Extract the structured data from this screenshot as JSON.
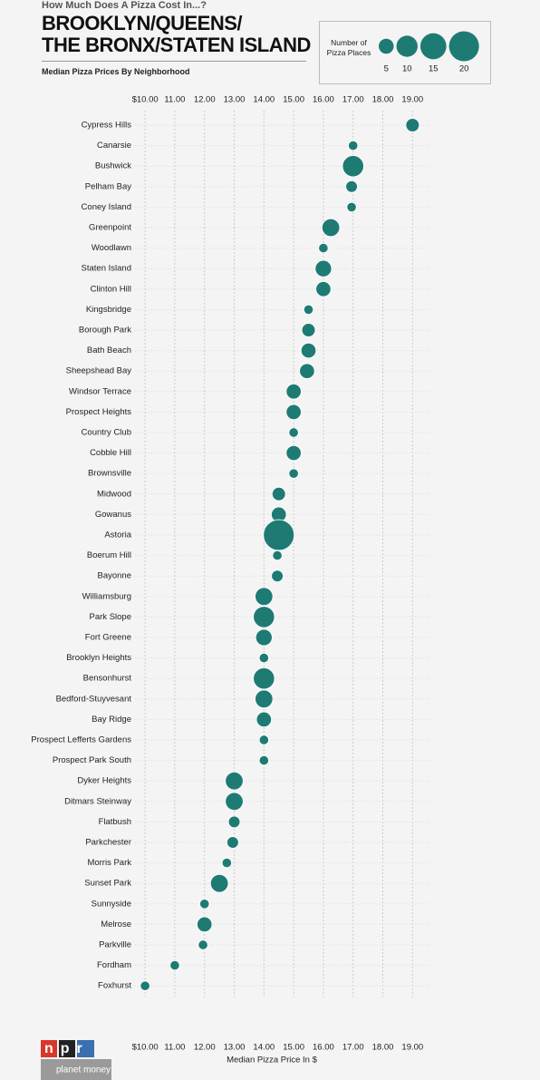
{
  "kicker": "How Much Does A Pizza Cost In...?",
  "title": "BROOKLYN/QUEENS/\nTHE BRONX/STATEN ISLAND",
  "subtitle": "Median Pizza Prices By Neighborhood",
  "logos": {
    "npr": "npr",
    "planet_money": "planet money"
  },
  "chart_data": {
    "type": "dot",
    "color": "#1e7b74",
    "x_label": "Median Pizza Price In $",
    "size_legend": {
      "title": "Number of\nPizza Places",
      "values": [
        5,
        10,
        15,
        20
      ]
    },
    "categories": [
      "Cypress Hills",
      "Canarsie",
      "Bushwick",
      "Pelham Bay",
      "Coney Island",
      "Greenpoint",
      "Woodlawn",
      "Staten Island",
      "Clinton Hill",
      "Kingsbridge",
      "Borough Park",
      "Bath Beach",
      "Sheepshead Bay",
      "Windsor Terrace",
      "Prospect Heights",
      "Country Club",
      "Cobble Hill",
      "Brownsville",
      "Midwood",
      "Gowanus",
      "Astoria",
      "Boerum Hill",
      "Bayonne",
      "Williamsburg",
      "Park Slope",
      "Fort Greene",
      "Brooklyn Heights",
      "Bensonhurst",
      "Bedford-Stuyvesant",
      "Bay Ridge",
      "Prospect Lefferts Gardens",
      "Prospect Park South",
      "Dyker Heights",
      "Ditmars Steinway",
      "Flatbush",
      "Parkchester",
      "Morris Park",
      "Sunset Park",
      "Sunnyside",
      "Melrose",
      "Parkville",
      "Fordham",
      "Foxhurst"
    ],
    "values": [
      19.0,
      17.0,
      17.0,
      16.95,
      16.95,
      16.25,
      16.0,
      16.0,
      16.0,
      15.5,
      15.5,
      15.5,
      15.45,
      15.0,
      15.0,
      15.0,
      15.0,
      15.0,
      14.5,
      14.5,
      14.5,
      14.45,
      14.45,
      14.0,
      14.0,
      14.0,
      14.0,
      14.0,
      14.0,
      14.0,
      14.0,
      14.0,
      13.0,
      13.0,
      13.0,
      12.95,
      12.75,
      12.5,
      12.0,
      12.0,
      11.95,
      11.0,
      10.0
    ],
    "sizes": [
      4,
      2,
      10,
      3,
      2,
      7,
      2,
      6,
      5,
      2,
      4,
      5,
      5,
      5,
      5,
      2,
      5,
      2,
      4,
      5,
      21,
      2,
      3,
      7,
      10,
      6,
      2,
      10,
      7,
      5,
      2,
      2,
      7,
      7,
      3,
      3,
      2,
      7,
      2,
      5,
      2,
      2,
      2
    ],
    "xlim": [
      9.6,
      19.6
    ],
    "xticks": [
      {
        "value": 10,
        "label": "$10.00"
      },
      {
        "value": 11,
        "label": "11.00"
      },
      {
        "value": 12,
        "label": "12.00"
      },
      {
        "value": 13,
        "label": "13.00"
      },
      {
        "value": 14,
        "label": "14.00"
      },
      {
        "value": 15,
        "label": "15.00"
      },
      {
        "value": 16,
        "label": "16.00"
      },
      {
        "value": 17,
        "label": "17.00"
      },
      {
        "value": 18,
        "label": "18.00"
      },
      {
        "value": 19,
        "label": "19.00"
      }
    ],
    "grid": true
  }
}
